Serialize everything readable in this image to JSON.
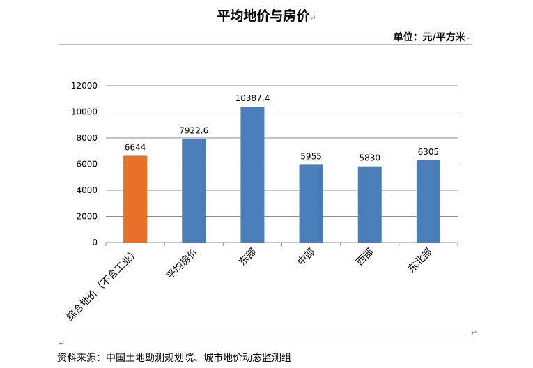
{
  "header": {
    "title": "平均地价与房价",
    "unit": "单位：元/平方米"
  },
  "footer": {
    "source": "资料来源：中国土地勘测规划院、城市地价动态监测组"
  },
  "colors": {
    "highlight": "#E8712A",
    "bar": "#4A7EBB",
    "grid": "#8C8C8C",
    "axis": "#8C8C8C"
  },
  "chart_data": {
    "type": "bar",
    "title": "",
    "xlabel": "",
    "ylabel": "",
    "categories": [
      "综合地价（不含工业）",
      "平均房价",
      "东部",
      "中部",
      "西部",
      "东北部"
    ],
    "values": [
      6644,
      7922.6,
      10387.4,
      5955,
      5830,
      6305
    ],
    "data_labels": [
      "6644",
      "7922.6",
      "10387.4",
      "5955",
      "5830",
      "6305"
    ],
    "highlight_index": 0,
    "ylim": [
      0,
      12000
    ],
    "yticks": [
      0,
      2000,
      4000,
      6000,
      8000,
      10000,
      12000
    ],
    "grid": true,
    "legend": "none"
  }
}
